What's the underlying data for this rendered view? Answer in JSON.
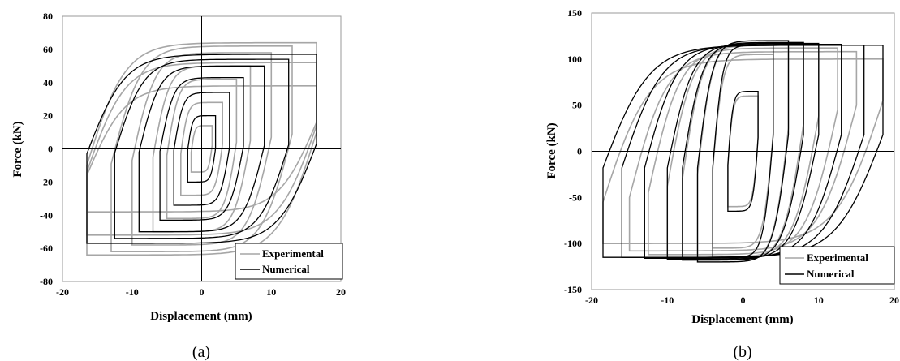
{
  "colors": {
    "experimental": "#a6a6a6",
    "numerical": "#000000",
    "frame": "#9a9a9a"
  },
  "chart_data": [
    {
      "type": "line",
      "caption": "(a)",
      "xlabel": "Displacement (mm)",
      "ylabel": "Force (kN)",
      "xlim": [
        -20,
        20
      ],
      "ylim": [
        -80,
        80
      ],
      "xticks": [
        -20,
        -10,
        0,
        10,
        20
      ],
      "yticks": [
        -80,
        -60,
        -40,
        -20,
        0,
        20,
        40,
        60,
        80
      ],
      "legend": {
        "position": "bottom-right",
        "entries": [
          "Experimental",
          "Numerical"
        ]
      },
      "series": [
        {
          "name": "Experimental",
          "loops": [
            {
              "amp": 1.5,
              "fmax": 14,
              "fres": 2
            },
            {
              "amp": 3,
              "fmax": 28,
              "fres": 3
            },
            {
              "amp": 5,
              "fmax": 42,
              "fres": 4
            },
            {
              "amp": 7,
              "fmax": 50,
              "fres": 5
            },
            {
              "amp": 10,
              "fmax": 58,
              "fres": 7
            },
            {
              "amp": 13,
              "fmax": 62,
              "fres": 9
            },
            {
              "amp": 16.5,
              "fmax": 64,
              "fres": 10
            },
            {
              "amp": 16.5,
              "fmax": 52,
              "fres": 14
            },
            {
              "amp": 16.5,
              "fmax": 38,
              "fres": 16
            }
          ]
        },
        {
          "name": "Numerical",
          "loops": [
            {
              "amp": 2,
              "fmax": 20,
              "fres": 0.5
            },
            {
              "amp": 4,
              "fmax": 34,
              "fres": 1
            },
            {
              "amp": 6,
              "fmax": 43,
              "fres": 1.5
            },
            {
              "amp": 9,
              "fmax": 50,
              "fres": 2
            },
            {
              "amp": 12.5,
              "fmax": 54,
              "fres": 2.5
            },
            {
              "amp": 16.5,
              "fmax": 57,
              "fres": 3
            }
          ]
        }
      ]
    },
    {
      "type": "line",
      "caption": "(b)",
      "xlabel": "Displacement (mm)",
      "ylabel": "Force (kN)",
      "xlim": [
        -20,
        20
      ],
      "ylim": [
        -150,
        150
      ],
      "xticks": [
        -20,
        -10,
        0,
        10,
        20
      ],
      "yticks": [
        -150,
        -100,
        -50,
        0,
        50,
        100,
        150
      ],
      "legend": {
        "position": "bottom-right",
        "entries": [
          "Experimental",
          "Numerical"
        ]
      },
      "series": [
        {
          "name": "Experimental",
          "loops": [
            {
              "amp": 2,
              "fmax": 60,
              "fres": 15
            },
            {
              "amp": 4,
              "fmax": 105,
              "fres": 20
            },
            {
              "amp": 6,
              "fmax": 120,
              "fres": 25
            },
            {
              "amp": 8,
              "fmax": 118,
              "fres": 30
            },
            {
              "amp": 10,
              "fmax": 115,
              "fres": 38
            },
            {
              "amp": 12.5,
              "fmax": 112,
              "fres": 45
            },
            {
              "amp": 15,
              "fmax": 108,
              "fres": 50
            },
            {
              "amp": 18.5,
              "fmax": 100,
              "fres": 55
            }
          ]
        },
        {
          "name": "Numerical",
          "loops": [
            {
              "amp": 2,
              "fmax": 65,
              "fres": 15
            },
            {
              "amp": 4,
              "fmax": 115,
              "fres": 18
            },
            {
              "amp": 6,
              "fmax": 120,
              "fres": 18
            },
            {
              "amp": 8,
              "fmax": 118,
              "fres": 18
            },
            {
              "amp": 10,
              "fmax": 117,
              "fres": 18
            },
            {
              "amp": 13,
              "fmax": 116,
              "fres": 18
            },
            {
              "amp": 16,
              "fmax": 115,
              "fres": 18
            },
            {
              "amp": 18.5,
              "fmax": 115,
              "fres": 18
            }
          ]
        }
      ]
    }
  ]
}
